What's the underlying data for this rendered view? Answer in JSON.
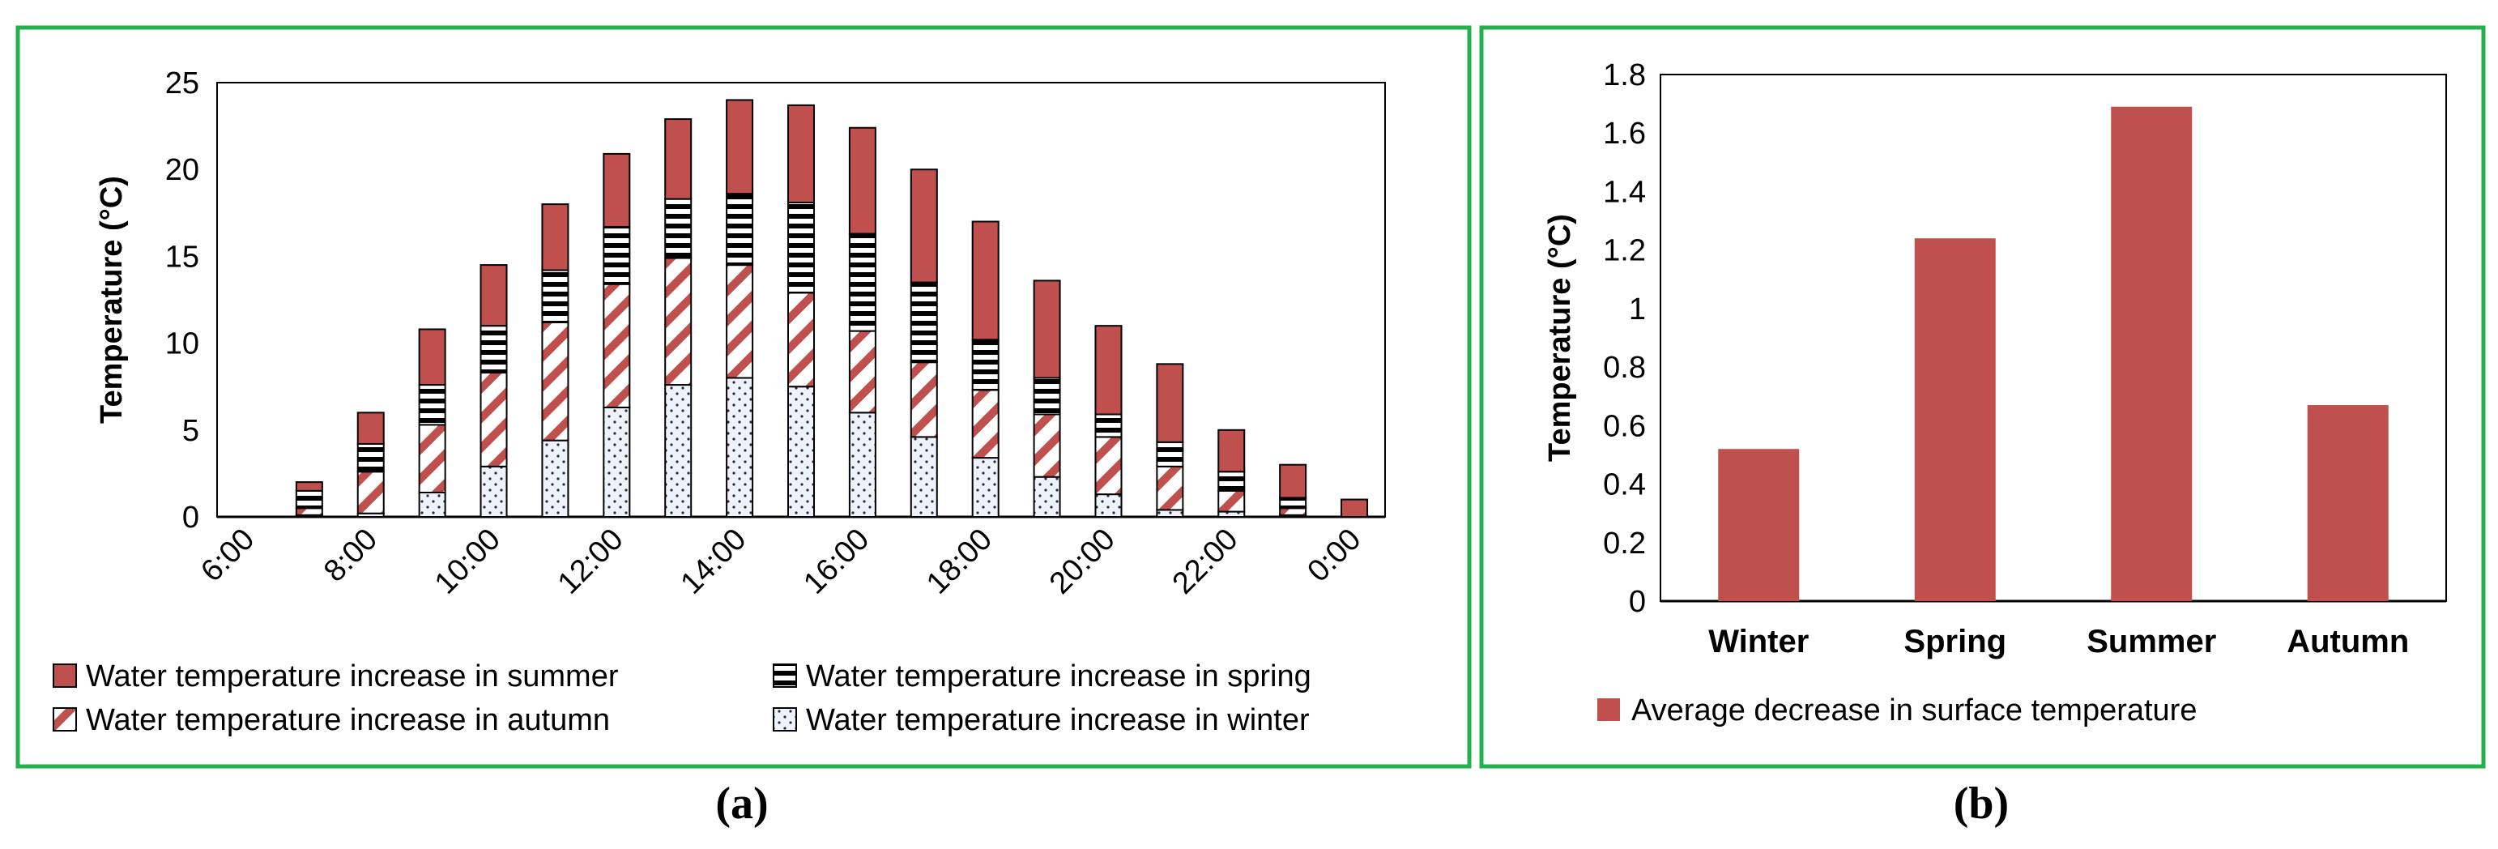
{
  "colors": {
    "frame": "#23b14d",
    "summer": "#c0504d",
    "edge": "#000000",
    "hatch_red": "#c0504d",
    "dots": "#000000"
  },
  "captions": {
    "a": "(a)",
    "b": "(b)"
  },
  "chart_data": [
    {
      "type": "bar",
      "stacked": true,
      "title": "",
      "xlabel": "",
      "ylabel": "Temperature (°C)",
      "ylim": [
        0,
        25
      ],
      "yticks": [
        0,
        5,
        10,
        15,
        20,
        25
      ],
      "categories": [
        "6:00",
        "7:00",
        "8:00",
        "9:00",
        "10:00",
        "11:00",
        "12:00",
        "13:00",
        "14:00",
        "15:00",
        "16:00",
        "17:00",
        "18:00",
        "19:00",
        "20:00",
        "21:00",
        "22:00",
        "23:00",
        "0:00"
      ],
      "tick_labels": [
        "6:00",
        "",
        "8:00",
        "",
        "10:00",
        "",
        "12:00",
        "",
        "14:00",
        "",
        "16:00",
        "",
        "18:00",
        "",
        "20:00",
        "",
        "22:00",
        "",
        "0:00"
      ],
      "series": [
        {
          "name": "Water temperature increase in winter",
          "pattern": "dots",
          "values": [
            0,
            0.1,
            0.2,
            1.4,
            2.9,
            4.4,
            6.3,
            7.6,
            8.0,
            7.5,
            6.0,
            4.6,
            3.4,
            2.3,
            1.3,
            0.4,
            0.3,
            0.1,
            0
          ]
        },
        {
          "name": "Water temperature increase in autumn",
          "pattern": "diagonal",
          "values": [
            0,
            0.4,
            2.4,
            3.9,
            5.4,
            6.8,
            7.1,
            7.3,
            6.5,
            5.4,
            4.7,
            4.3,
            3.9,
            3.6,
            3.3,
            2.5,
            1.2,
            0.4,
            0
          ]
        },
        {
          "name": "Water temperature increase in spring",
          "pattern": "horizontal",
          "values": [
            0,
            1.0,
            1.6,
            2.3,
            2.7,
            3.0,
            3.3,
            3.4,
            4.1,
            5.2,
            5.6,
            4.6,
            2.9,
            2.1,
            1.3,
            1.4,
            1.1,
            0.6,
            0
          ]
        },
        {
          "name": "Water temperature increase in summer",
          "pattern": "solid",
          "values": [
            0,
            0.5,
            1.8,
            3.2,
            3.5,
            3.8,
            4.2,
            4.6,
            5.4,
            5.6,
            6.1,
            6.5,
            6.8,
            5.6,
            5.1,
            4.5,
            2.4,
            1.9,
            1.0
          ]
        }
      ],
      "legend": {
        "placement": "bottom",
        "order": [
          "Water temperature increase in summer",
          "Water temperature increase in spring",
          "Water temperature increase in autumn",
          "Water temperature increase in winter"
        ]
      }
    },
    {
      "type": "bar",
      "title": "",
      "xlabel": "",
      "ylabel": "Temperature (°C)",
      "ylim": [
        0,
        1.8
      ],
      "yticks": [
        "0",
        "0.2",
        "0.4",
        "0.6",
        "0.8",
        "1",
        "1.2",
        "1.4",
        "1.6",
        "1.8"
      ],
      "categories": [
        "Winter",
        "Spring",
        "Summer",
        "Autumn"
      ],
      "series": [
        {
          "name": "Average decrease in surface temperature",
          "values": [
            0.52,
            1.24,
            1.69,
            0.67
          ]
        }
      ],
      "legend": {
        "placement": "bottom"
      }
    }
  ]
}
